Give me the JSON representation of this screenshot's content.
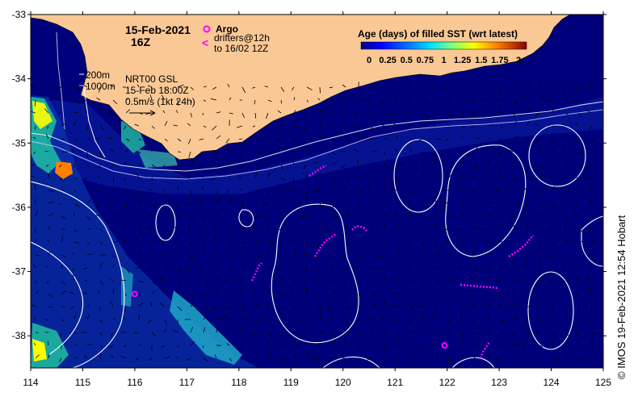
{
  "map": {
    "date": "15-Feb-2021",
    "time": "16Z",
    "legend_argo": "Argo",
    "legend_drifters_line1": "drifters@12h",
    "legend_drifters_line2": "to 16/02 12Z",
    "colorbar_title": "Age (days) of filled SST (wrt latest)",
    "colorbar_ticks": [
      "0",
      "0.25",
      "0.5",
      "0.75",
      "1",
      "1.25",
      "1.5",
      "1.75",
      "2"
    ],
    "isobath_200": "200m",
    "isobath_1000": "1000m",
    "product": "NRT00 GSL",
    "product_time": "15-Feb 18:00Z",
    "vector_scale": "0.5m/s (1kt 24h)",
    "credit": "© IMOS 19-Feb-2021 12:54 Hobart"
  },
  "axes": {
    "x_ticks": [
      "114",
      "115",
      "116",
      "117",
      "118",
      "119",
      "120",
      "121",
      "122",
      "123",
      "124",
      "125"
    ],
    "y_ticks": [
      "-33",
      "-34",
      "-35",
      "-36",
      "-37",
      "-38"
    ],
    "lon_range": [
      114,
      125
    ],
    "lat_range": [
      -38.5,
      -33
    ]
  },
  "colors": {
    "ocean": "#00007a",
    "land": "#f9c895",
    "drifter": "#ff00ff",
    "contour": "#ffffff"
  },
  "markers": {
    "argo_floats": [
      {
        "lon": 116.0,
        "lat": -37.35
      },
      {
        "lon": 121.95,
        "lat": -38.15
      }
    ]
  }
}
